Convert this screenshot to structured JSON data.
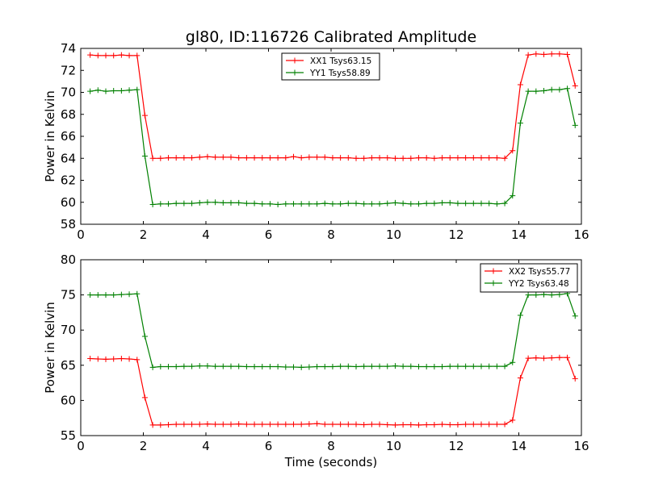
{
  "title": "gl80, ID:116726 Calibrated Amplitude",
  "xlabel": "Time (seconds)",
  "chart_data": [
    {
      "type": "line",
      "title": "gl80, ID:116726 Calibrated Amplitude",
      "xlabel": "",
      "ylabel": "Power in Kelvin",
      "xlim": [
        0,
        16
      ],
      "ylim": [
        58,
        74
      ],
      "xticks": [
        0,
        2,
        4,
        6,
        8,
        10,
        12,
        14,
        16
      ],
      "yticks": [
        58,
        60,
        62,
        64,
        66,
        68,
        70,
        72,
        74
      ],
      "legend_position": "top-center",
      "grid": false,
      "x": [
        0.3,
        0.55,
        0.8,
        1.05,
        1.3,
        1.55,
        1.8,
        2.05,
        2.3,
        2.55,
        2.8,
        3.05,
        3.3,
        3.55,
        3.8,
        4.05,
        4.3,
        4.55,
        4.8,
        5.05,
        5.3,
        5.55,
        5.8,
        6.05,
        6.3,
        6.55,
        6.8,
        7.05,
        7.3,
        7.55,
        7.8,
        8.05,
        8.3,
        8.55,
        8.8,
        9.05,
        9.3,
        9.55,
        9.8,
        10.05,
        10.3,
        10.55,
        10.8,
        11.05,
        11.3,
        11.55,
        11.8,
        12.05,
        12.3,
        12.55,
        12.8,
        13.05,
        13.3,
        13.55,
        13.8,
        14.05,
        14.3,
        14.55,
        14.8,
        15.05,
        15.3,
        15.55,
        15.8
      ],
      "series": [
        {
          "name": "XX1 Tsys63.15",
          "color": "#ff0000",
          "values": [
            73.4,
            73.35,
            73.35,
            73.35,
            73.4,
            73.35,
            73.35,
            67.9,
            64.0,
            64.0,
            64.05,
            64.05,
            64.05,
            64.05,
            64.1,
            64.15,
            64.1,
            64.1,
            64.1,
            64.05,
            64.05,
            64.05,
            64.05,
            64.05,
            64.05,
            64.05,
            64.15,
            64.05,
            64.1,
            64.1,
            64.1,
            64.05,
            64.05,
            64.05,
            64.0,
            64.0,
            64.05,
            64.05,
            64.05,
            64.0,
            64.0,
            64.0,
            64.05,
            64.05,
            64.0,
            64.05,
            64.05,
            64.05,
            64.05,
            64.05,
            64.05,
            64.05,
            64.05,
            64.0,
            64.7,
            70.7,
            73.4,
            73.5,
            73.45,
            73.5,
            73.5,
            73.45,
            70.6
          ]
        },
        {
          "name": "YY1 Tsys58.89",
          "color": "#008000",
          "values": [
            70.1,
            70.2,
            70.1,
            70.15,
            70.15,
            70.2,
            70.25,
            64.2,
            59.8,
            59.85,
            59.85,
            59.9,
            59.9,
            59.9,
            59.95,
            60.0,
            60.0,
            59.95,
            59.95,
            59.95,
            59.9,
            59.9,
            59.85,
            59.85,
            59.8,
            59.85,
            59.85,
            59.85,
            59.85,
            59.85,
            59.9,
            59.85,
            59.85,
            59.9,
            59.9,
            59.85,
            59.85,
            59.85,
            59.9,
            59.95,
            59.9,
            59.85,
            59.85,
            59.9,
            59.9,
            59.95,
            59.95,
            59.9,
            59.9,
            59.9,
            59.9,
            59.9,
            59.85,
            59.9,
            60.6,
            67.2,
            70.1,
            70.1,
            70.15,
            70.25,
            70.25,
            70.35,
            67.0
          ]
        }
      ]
    },
    {
      "type": "line",
      "title": "",
      "xlabel": "Time (seconds)",
      "ylabel": "Power in Kelvin",
      "xlim": [
        0,
        16
      ],
      "ylim": [
        55,
        80
      ],
      "xticks": [
        0,
        2,
        4,
        6,
        8,
        10,
        12,
        14,
        16
      ],
      "yticks": [
        55,
        60,
        65,
        70,
        75,
        80
      ],
      "legend_position": "top-right",
      "grid": false,
      "x": [
        0.3,
        0.55,
        0.8,
        1.05,
        1.3,
        1.55,
        1.8,
        2.05,
        2.3,
        2.55,
        2.8,
        3.05,
        3.3,
        3.55,
        3.8,
        4.05,
        4.3,
        4.55,
        4.8,
        5.05,
        5.3,
        5.55,
        5.8,
        6.05,
        6.3,
        6.55,
        6.8,
        7.05,
        7.3,
        7.55,
        7.8,
        8.05,
        8.3,
        8.55,
        8.8,
        9.05,
        9.3,
        9.55,
        9.8,
        10.05,
        10.3,
        10.55,
        10.8,
        11.05,
        11.3,
        11.55,
        11.8,
        12.05,
        12.3,
        12.55,
        12.8,
        13.05,
        13.3,
        13.55,
        13.8,
        14.05,
        14.3,
        14.55,
        14.8,
        15.05,
        15.3,
        15.55,
        15.8
      ],
      "series": [
        {
          "name": "XX2 Tsys55.77",
          "color": "#ff0000",
          "values": [
            65.95,
            65.9,
            65.85,
            65.9,
            65.95,
            65.9,
            65.8,
            60.4,
            56.5,
            56.5,
            56.55,
            56.6,
            56.6,
            56.6,
            56.6,
            56.65,
            56.6,
            56.6,
            56.6,
            56.65,
            56.6,
            56.6,
            56.6,
            56.6,
            56.6,
            56.6,
            56.6,
            56.6,
            56.65,
            56.7,
            56.6,
            56.6,
            56.6,
            56.6,
            56.6,
            56.55,
            56.6,
            56.6,
            56.55,
            56.5,
            56.55,
            56.55,
            56.5,
            56.55,
            56.55,
            56.6,
            56.55,
            56.55,
            56.6,
            56.6,
            56.6,
            56.6,
            56.6,
            56.6,
            57.2,
            63.2,
            66.0,
            66.05,
            66.0,
            66.05,
            66.1,
            66.1,
            63.1
          ]
        },
        {
          "name": "YY2 Tsys63.48",
          "color": "#008000",
          "values": [
            75.0,
            75.0,
            75.0,
            75.0,
            75.05,
            75.1,
            75.15,
            69.1,
            64.7,
            64.8,
            64.8,
            64.8,
            64.85,
            64.85,
            64.9,
            64.9,
            64.85,
            64.85,
            64.85,
            64.85,
            64.8,
            64.8,
            64.8,
            64.8,
            64.8,
            64.75,
            64.75,
            64.7,
            64.75,
            64.8,
            64.8,
            64.8,
            64.85,
            64.85,
            64.8,
            64.85,
            64.85,
            64.85,
            64.85,
            64.9,
            64.85,
            64.85,
            64.8,
            64.8,
            64.8,
            64.8,
            64.85,
            64.85,
            64.85,
            64.85,
            64.85,
            64.85,
            64.85,
            64.85,
            65.4,
            72.1,
            75.0,
            75.0,
            75.05,
            75.0,
            75.05,
            75.2,
            72.0
          ]
        }
      ]
    }
  ]
}
